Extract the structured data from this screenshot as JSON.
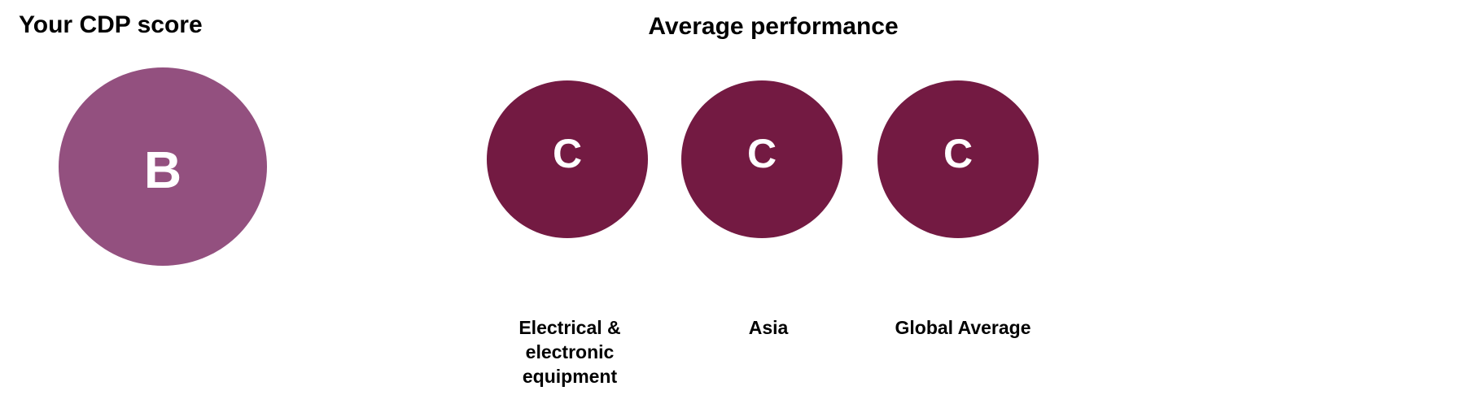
{
  "your_score": {
    "title": "Your CDP score",
    "score": "B",
    "color": "#93507F"
  },
  "average": {
    "title": "Average performance",
    "color": "#731A42",
    "items": [
      {
        "score": "C",
        "label": "Electrical & electronic equipment"
      },
      {
        "score": "C",
        "label": "Asia"
      },
      {
        "score": "C",
        "label": "Global Average"
      }
    ]
  }
}
